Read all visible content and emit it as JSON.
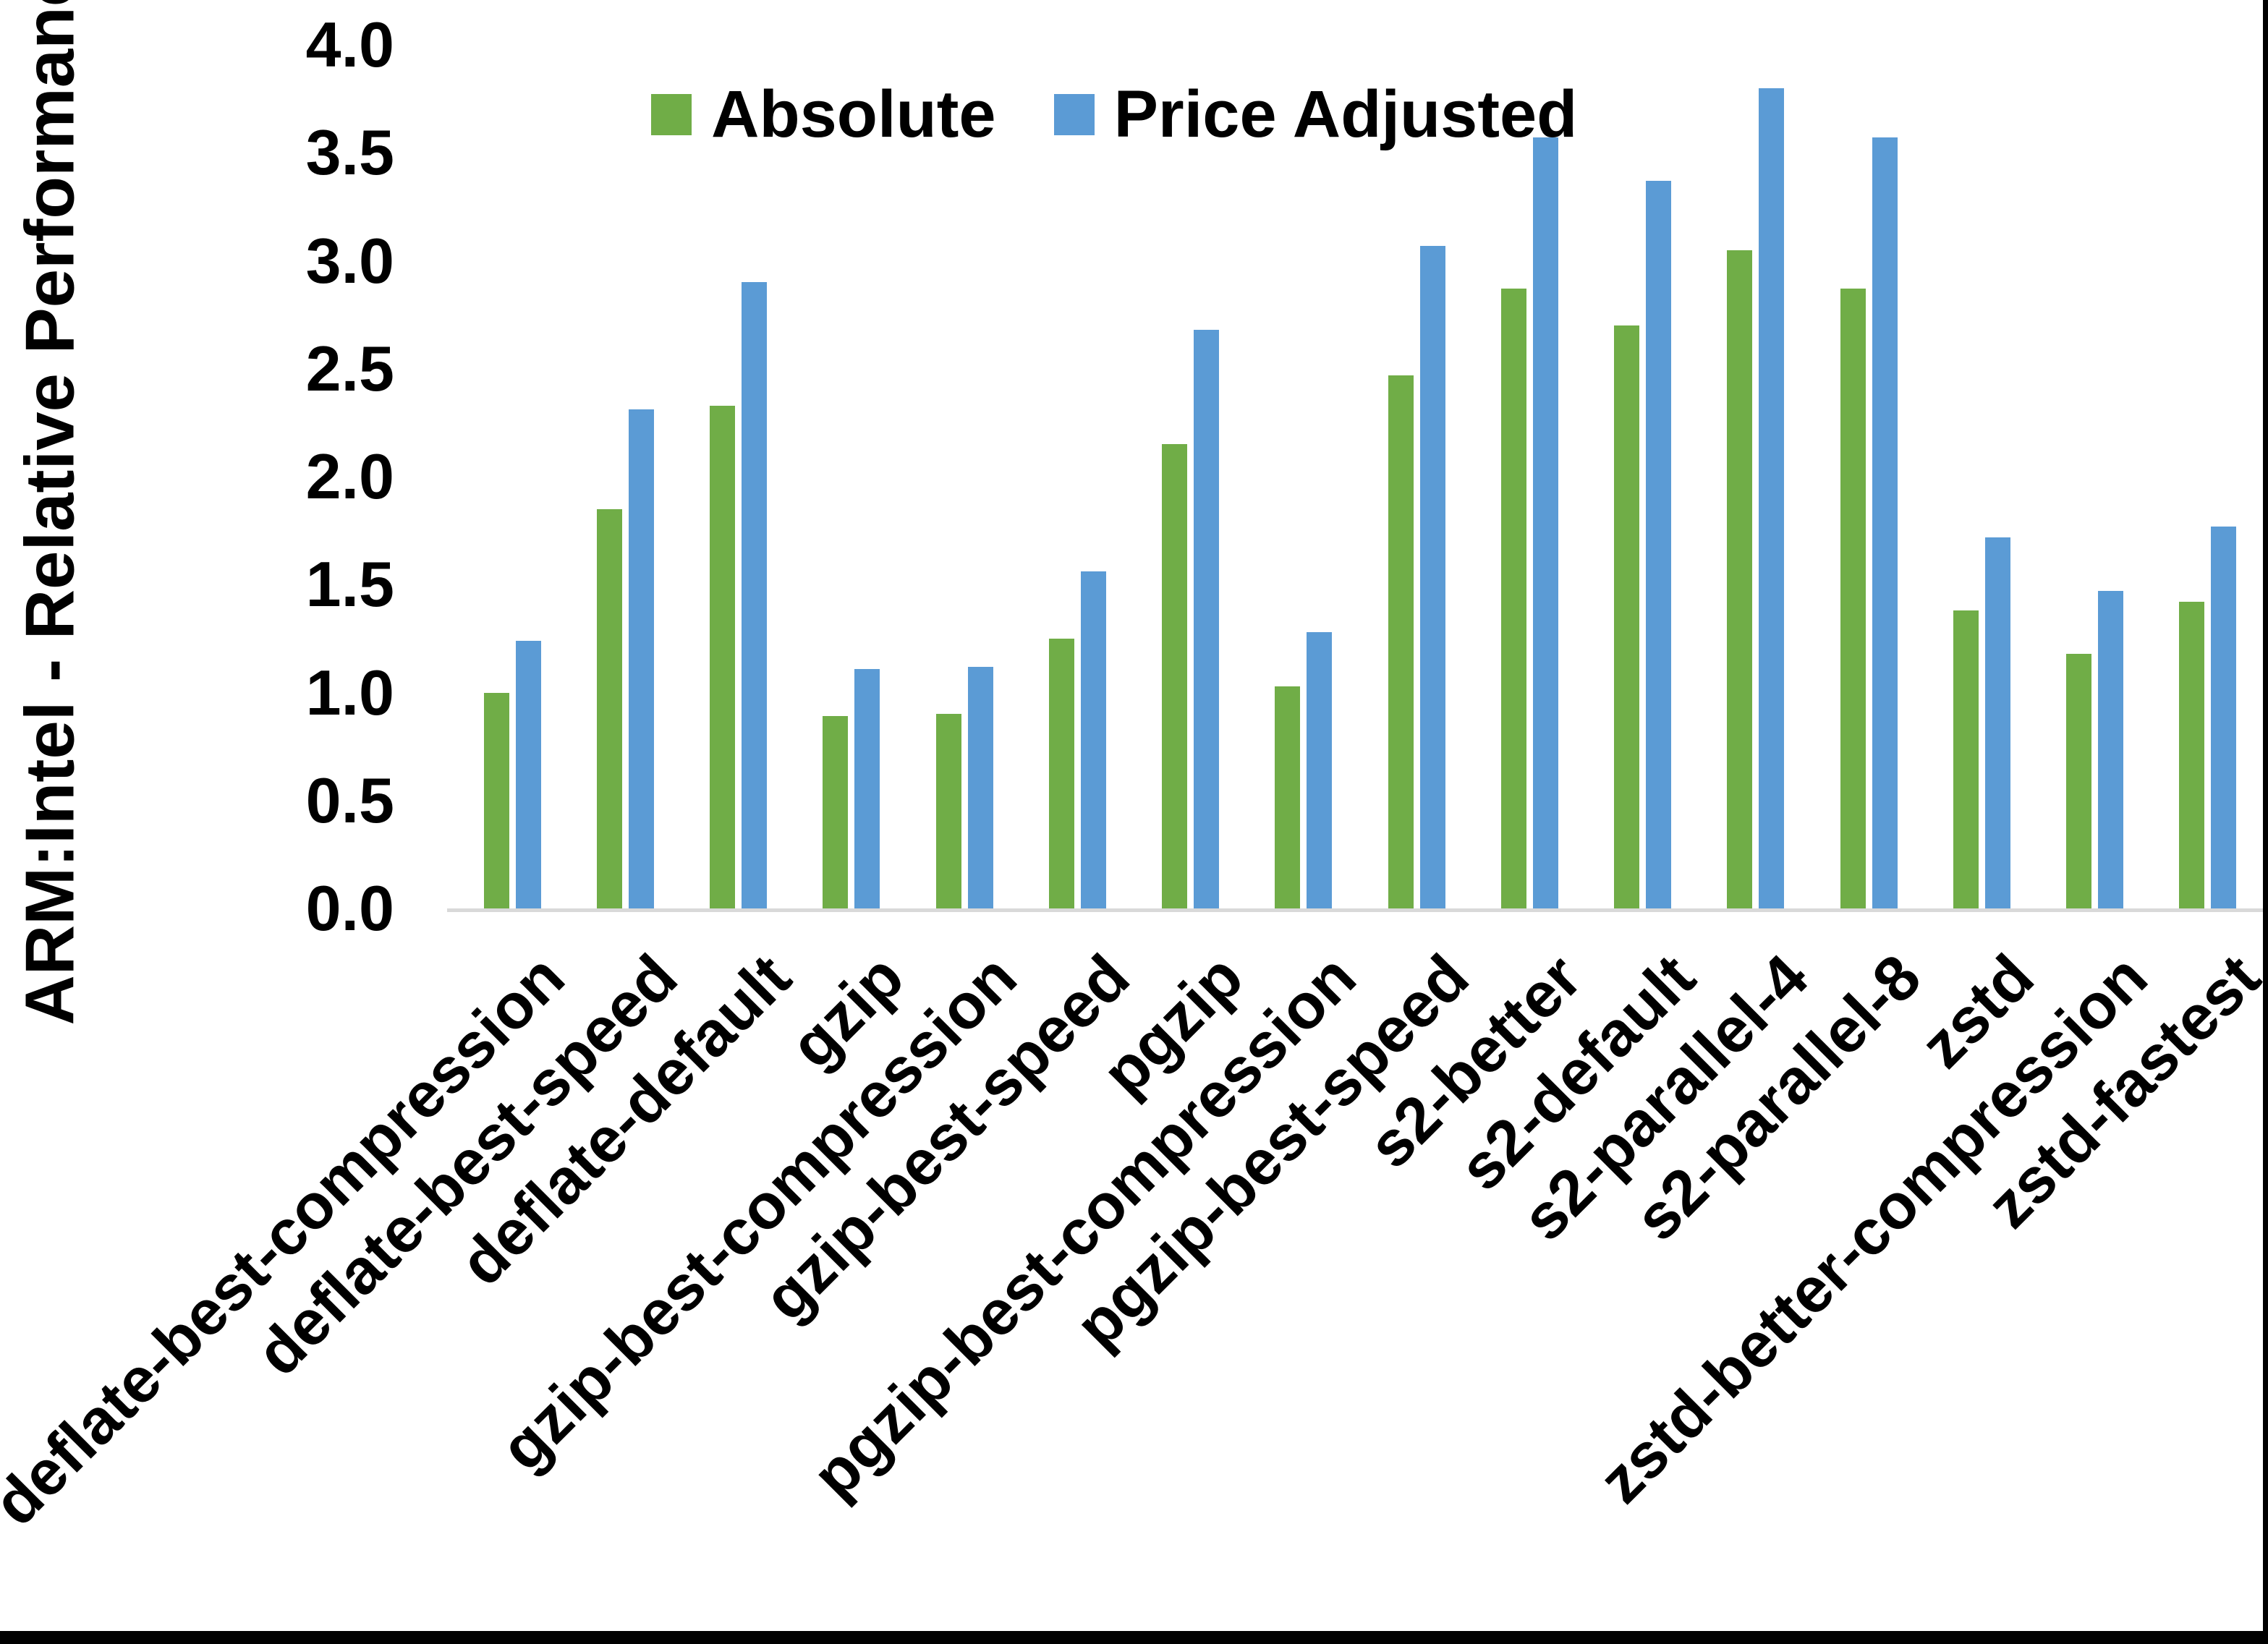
{
  "figure": {
    "background_color": "#FFFFFF",
    "edge_border_color": "#000000"
  },
  "chart_data": {
    "type": "bar",
    "title": "",
    "xlabel": "",
    "ylabel": "ARM:Intel - Relative Performance",
    "ylim": [
      0.0,
      4.0
    ],
    "ytick_step": 0.5,
    "ytick_labels": [
      "4.0",
      "3.5",
      "3.0",
      "2.5",
      "2.0",
      "1.5",
      "1.0",
      "0.5",
      "0.0"
    ],
    "grid": false,
    "legend_position": "top-center",
    "axis_line_color": "#D9D9D9",
    "categories": [
      "deflate-best-compression",
      "deflate-best-speed",
      "deflate-default",
      "gzip",
      "gzip-best-compression",
      "gzip-best-speed",
      "pgzip",
      "pgzip-best-compression",
      "pgzip-best-speed",
      "s2-better",
      "s2-default",
      "s2-parallel-4",
      "s2-parallel-8",
      "zstd",
      "zstd-better-compression",
      "zstd-fastest"
    ],
    "series": [
      {
        "name": "Absolute",
        "color": "#70AD47",
        "values": [
          1.0,
          1.85,
          2.33,
          0.89,
          0.9,
          1.25,
          2.15,
          1.03,
          2.47,
          2.87,
          2.7,
          3.05,
          2.87,
          1.38,
          1.18,
          1.42
        ]
      },
      {
        "name": "Price Adjusted",
        "color": "#5B9BD5",
        "values": [
          1.24,
          2.31,
          2.9,
          1.11,
          1.12,
          1.56,
          2.68,
          1.28,
          3.07,
          3.57,
          3.37,
          3.8,
          3.57,
          1.72,
          1.47,
          1.77
        ]
      }
    ]
  }
}
